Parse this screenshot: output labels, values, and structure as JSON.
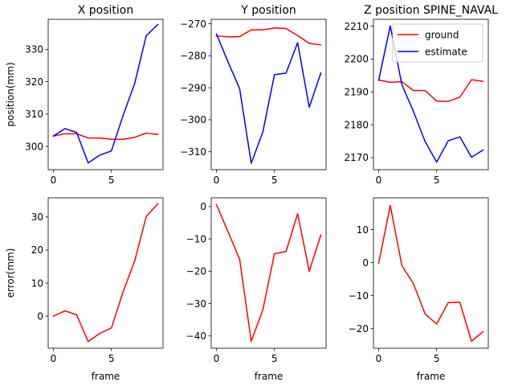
{
  "chart_data": [
    {
      "type": "line",
      "title": "X position",
      "xlabel": "",
      "ylabel": "position(mm)",
      "x": [
        0,
        1,
        2,
        3,
        4,
        5,
        6,
        7,
        8,
        9
      ],
      "xlim": [
        -0.45,
        9.45
      ],
      "ylim": [
        292.8,
        339.3
      ],
      "xticks": [
        0,
        5
      ],
      "yticks": [
        300,
        310,
        320,
        330
      ],
      "xtick_labels": [
        "0",
        "5"
      ],
      "ytick_labels": [
        "300",
        "310",
        "320",
        "330"
      ],
      "series": [
        {
          "color": "#ff0000",
          "values": [
            303.2,
            303.9,
            303.9,
            302.6,
            302.6,
            302.2,
            302.2,
            302.8,
            304.1,
            303.7
          ]
        },
        {
          "color": "#0000ff",
          "values": [
            303.2,
            305.5,
            304.3,
            294.9,
            297.3,
            298.6,
            309.5,
            319.4,
            334.2,
            337.7
          ]
        }
      ]
    },
    {
      "type": "line",
      "title": "Y position",
      "xlabel": "",
      "ylabel": "",
      "x": [
        0,
        1,
        2,
        3,
        4,
        5,
        6,
        7,
        8,
        9
      ],
      "xlim": [
        -0.45,
        9.45
      ],
      "ylim": [
        -315.6,
        -268.6
      ],
      "xticks": [
        0,
        5
      ],
      "yticks": [
        -310,
        -300,
        -290,
        -280,
        -270
      ],
      "xtick_labels": [
        "0",
        "5"
      ],
      "ytick_labels": [
        "−310",
        "−300",
        "−290",
        "−280",
        "−270"
      ],
      "series": [
        {
          "color": "#ff0000",
          "values": [
            -273.8,
            -274.1,
            -274.0,
            -271.9,
            -271.9,
            -271.3,
            -271.5,
            -273.7,
            -276.1,
            -276.6
          ]
        },
        {
          "color": "#0000ff",
          "values": [
            -273.2,
            -281.9,
            -290.3,
            -313.6,
            -303.8,
            -285.9,
            -285.4,
            -275.9,
            -296.1,
            -285.4
          ]
        }
      ]
    },
    {
      "type": "line",
      "title": "Z position SPINE_NAVAL",
      "xlabel": "",
      "ylabel": "",
      "x": [
        0,
        1,
        2,
        3,
        4,
        5,
        6,
        7,
        8,
        9
      ],
      "xlim": [
        -0.45,
        9.45
      ],
      "ylim": [
        2166.3,
        2212.1
      ],
      "xticks": [
        0,
        5
      ],
      "yticks": [
        2170,
        2180,
        2190,
        2200,
        2210
      ],
      "xtick_labels": [
        "0",
        "5"
      ],
      "ytick_labels": [
        "2170",
        "2180",
        "2190",
        "2200",
        "2210"
      ],
      "legend": {
        "position": "upper right",
        "entries": [
          "ground",
          "estimate"
        ]
      },
      "series": [
        {
          "name": "ground",
          "color": "#ff0000",
          "values": [
            2193.6,
            2192.9,
            2193.1,
            2190.4,
            2190.4,
            2187.2,
            2187.1,
            2188.4,
            2193.7,
            2193.2
          ]
        },
        {
          "name": "estimate",
          "color": "#0000ff",
          "values": [
            2193.5,
            2210.1,
            2192.2,
            2184.0,
            2174.9,
            2168.6,
            2175.1,
            2176.3,
            2170.1,
            2172.3
          ]
        }
      ]
    },
    {
      "type": "line",
      "title": "",
      "xlabel": "frame",
      "ylabel": "error(mm)",
      "x": [
        0,
        1,
        2,
        3,
        4,
        5,
        6,
        7,
        8,
        9
      ],
      "xlim": [
        -0.45,
        9.45
      ],
      "ylim": [
        -9.7,
        35.8
      ],
      "xticks": [
        0,
        5
      ],
      "yticks": [
        0,
        10,
        20,
        30
      ],
      "xtick_labels": [
        "0",
        "5"
      ],
      "ytick_labels": [
        "0",
        "10",
        "20",
        "30"
      ],
      "series": [
        {
          "color": "#ff0000",
          "values": [
            0.0,
            1.6,
            0.4,
            -7.7,
            -5.2,
            -3.6,
            7.3,
            16.6,
            30.1,
            34.0
          ]
        }
      ]
    },
    {
      "type": "line",
      "title": "",
      "xlabel": "frame",
      "ylabel": "",
      "x": [
        0,
        1,
        2,
        3,
        4,
        5,
        6,
        7,
        8,
        9
      ],
      "xlim": [
        -0.45,
        9.45
      ],
      "ylim": [
        -43.8,
        2.7
      ],
      "xticks": [
        0,
        5
      ],
      "yticks": [
        -40,
        -30,
        -20,
        -10,
        0
      ],
      "xtick_labels": [
        "0",
        "5"
      ],
      "ytick_labels": [
        "−40",
        "−30",
        "−20",
        "−10",
        "0"
      ],
      "series": [
        {
          "color": "#ff0000",
          "values": [
            0.6,
            -7.8,
            -16.3,
            -41.7,
            -31.9,
            -14.6,
            -13.9,
            -2.2,
            -20.0,
            -8.8
          ]
        }
      ]
    },
    {
      "type": "line",
      "title": "",
      "xlabel": "frame",
      "ylabel": "",
      "x": [
        0,
        1,
        2,
        3,
        4,
        5,
        6,
        7,
        8,
        9
      ],
      "xlim": [
        -0.45,
        9.45
      ],
      "ylim": [
        -25.9,
        19.6
      ],
      "xticks": [
        0,
        5
      ],
      "yticks": [
        -20,
        -10,
        0,
        10
      ],
      "xtick_labels": [
        "0",
        "5"
      ],
      "ytick_labels": [
        "−20",
        "−10",
        "0",
        "10"
      ],
      "series": [
        {
          "color": "#ff0000",
          "values": [
            -0.2,
            17.3,
            -0.9,
            -6.4,
            -15.5,
            -18.6,
            -12.1,
            -12.0,
            -23.8,
            -20.9
          ]
        }
      ]
    }
  ]
}
